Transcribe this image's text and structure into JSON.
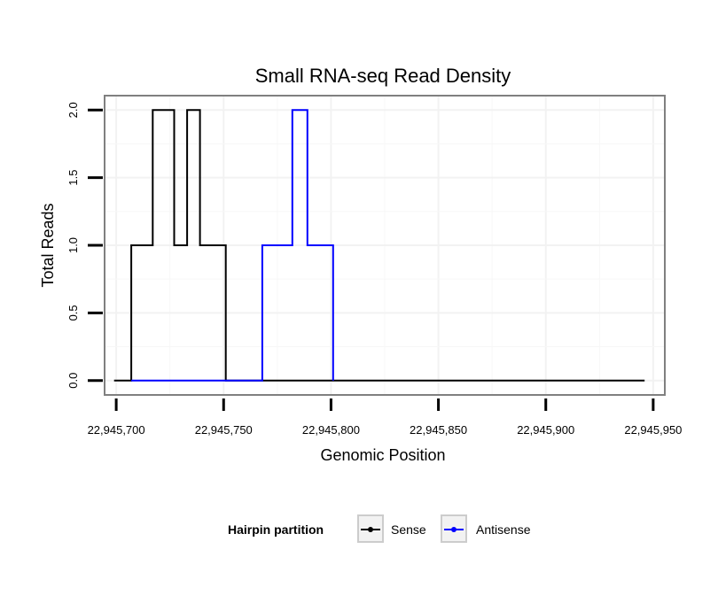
{
  "chart_data": {
    "type": "line",
    "title": "Small RNA-seq Read Density",
    "xlabel": "Genomic Position",
    "ylabel": "Total Reads",
    "xlim": [
      22945695,
      22945955
    ],
    "ylim": [
      -0.1,
      2.1
    ],
    "x_ticks": [
      22945700,
      22945750,
      22945800,
      22945850,
      22945900,
      22945950
    ],
    "x_tick_labels": [
      "22,945,700",
      "22,945,750",
      "22,945,800",
      "22,945,850",
      "22,945,900",
      "22,945,950"
    ],
    "y_ticks": [
      0,
      0.5,
      1,
      1.5,
      2
    ],
    "y_tick_labels": [
      "0.0",
      "0.5",
      "1.0",
      "1.5",
      "2.0"
    ],
    "grid": true,
    "legend": {
      "title": "Hairpin partition",
      "position": "bottom",
      "entries": [
        "Sense",
        "Antisense"
      ]
    },
    "series": [
      {
        "name": "Sense",
        "color": "#000000",
        "x": [
          22945699,
          22945707,
          22945707,
          22945717,
          22945717,
          22945727,
          22945727,
          22945733,
          22945733,
          22945739,
          22945739,
          22945751,
          22945751,
          22945946
        ],
        "y": [
          0,
          0,
          1,
          1,
          2,
          2,
          1,
          1,
          2,
          2,
          1,
          1,
          0,
          0
        ]
      },
      {
        "name": "Antisense",
        "color": "#0000ff",
        "x": [
          22945707,
          22945768,
          22945768,
          22945782,
          22945782,
          22945789,
          22945789,
          22945801,
          22945801
        ],
        "y": [
          0,
          0,
          1,
          1,
          2,
          2,
          1,
          1,
          0
        ]
      }
    ]
  }
}
